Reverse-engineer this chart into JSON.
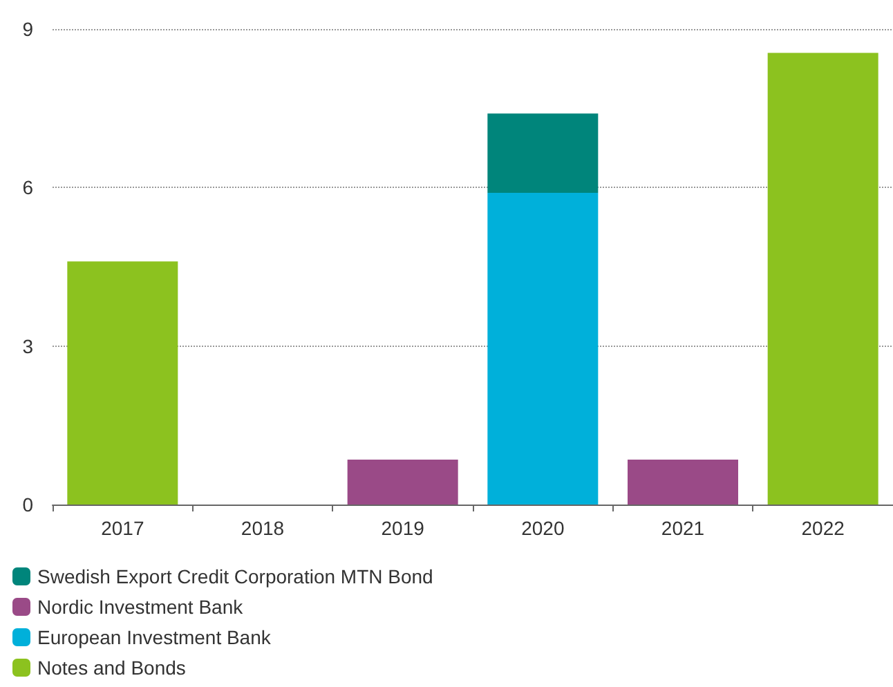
{
  "chart_data": {
    "type": "bar",
    "stacked": true,
    "categories": [
      "2017",
      "2018",
      "2019",
      "2020",
      "2021",
      "2022"
    ],
    "series": [
      {
        "name": "Notes and Bonds",
        "color": "#8cc21f",
        "values": [
          4.6,
          0,
          0,
          0,
          0,
          8.55
        ]
      },
      {
        "name": "European Investment Bank",
        "color": "#00b0da",
        "values": [
          0,
          0,
          0,
          5.9,
          0,
          0
        ]
      },
      {
        "name": "Nordic Investment Bank",
        "color": "#9a4a87",
        "values": [
          0,
          0,
          0.85,
          0,
          0.85,
          0
        ]
      },
      {
        "name": "Swedish Export Credit Corporation MTN Bond",
        "color": "#00857b",
        "values": [
          0,
          0,
          0,
          1.5,
          0,
          0
        ]
      }
    ],
    "ylim": [
      0,
      9
    ],
    "yticks": [
      0,
      3,
      6,
      9
    ],
    "grid": "y",
    "legend": "bottom"
  }
}
